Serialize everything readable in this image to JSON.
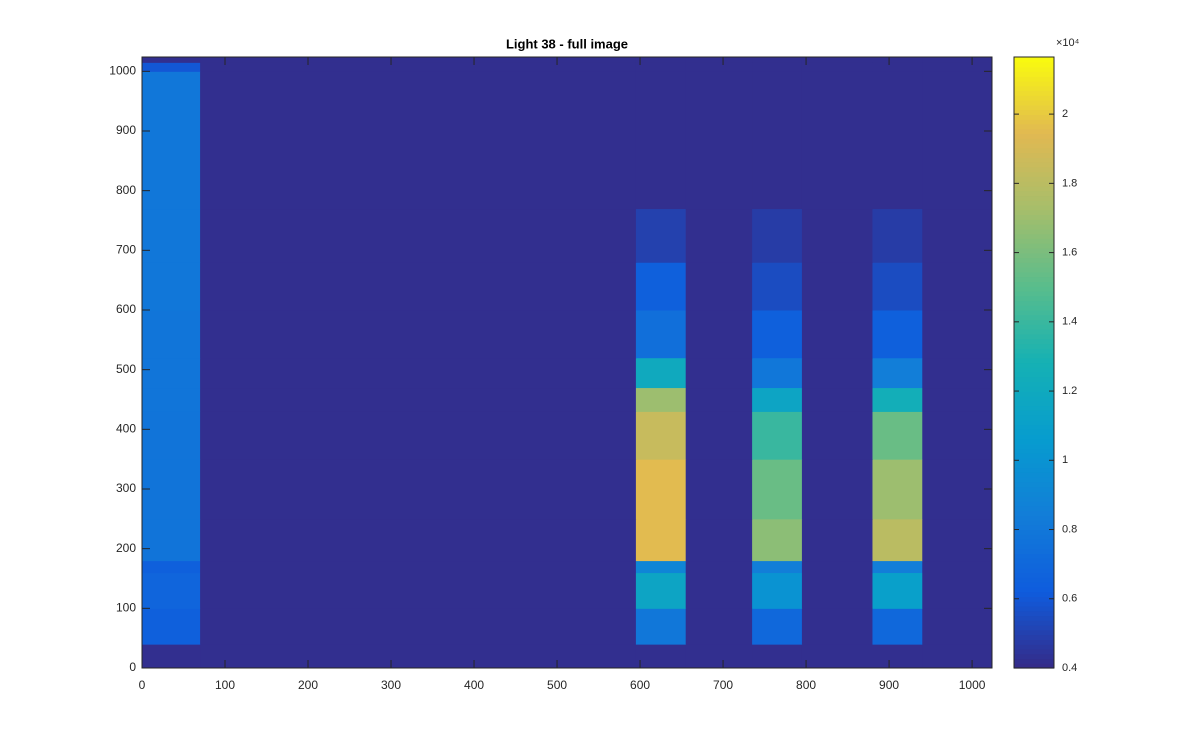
{
  "chart_data": {
    "type": "heatmap",
    "title": "Light 38 - full image",
    "colormap": "parula",
    "xlim": [
      0,
      1024
    ],
    "ylim": [
      0,
      1024
    ],
    "xticks": [
      0,
      100,
      200,
      300,
      400,
      500,
      600,
      700,
      800,
      900,
      1000
    ],
    "yticks": [
      0,
      100,
      200,
      300,
      400,
      500,
      600,
      700,
      800,
      900,
      1000
    ],
    "xedges": [
      0,
      70,
      595,
      655,
      735,
      795,
      880,
      940,
      1024
    ],
    "yedges": [
      0,
      40,
      100,
      160,
      180,
      250,
      350,
      430,
      470,
      520,
      600,
      680,
      770,
      1000,
      1015,
      1024
    ],
    "z": [
      [
        4200,
        4200,
        4200,
        4200,
        4200,
        4200,
        4200,
        4200
      ],
      [
        6500,
        4200,
        8000,
        4200,
        7000,
        4200,
        7000,
        4200
      ],
      [
        6800,
        4200,
        11500,
        4200,
        10000,
        4200,
        11000,
        4200
      ],
      [
        6500,
        4200,
        9000,
        4200,
        8500,
        4200,
        8500,
        4200
      ],
      [
        7800,
        4200,
        19500,
        4200,
        16500,
        4200,
        18000,
        4200
      ],
      [
        7800,
        4200,
        19500,
        4200,
        15500,
        4200,
        17000,
        4200
      ],
      [
        7800,
        4200,
        18500,
        4200,
        14000,
        4200,
        15500,
        4200
      ],
      [
        7900,
        4200,
        17000,
        4200,
        11500,
        4200,
        12500,
        4200
      ],
      [
        7900,
        4200,
        12000,
        4200,
        8000,
        4200,
        8500,
        4200
      ],
      [
        7900,
        4200,
        7500,
        4200,
        6500,
        4200,
        6500,
        4200
      ],
      [
        8000,
        4200,
        6500,
        4200,
        5500,
        4200,
        5500,
        4200
      ],
      [
        8000,
        4200,
        5000,
        4200,
        4800,
        4200,
        4800,
        4200
      ],
      [
        8000,
        4200,
        4200,
        4200,
        4200,
        4200,
        4200,
        4200
      ],
      [
        6000,
        4200,
        4200,
        4200,
        4200,
        4200,
        4200,
        4200
      ],
      [
        4200,
        4200,
        4200,
        4200,
        4200,
        4200,
        4200,
        4200
      ]
    ],
    "clim": [
      4000,
      21650
    ],
    "colorbar_exponent": "×10⁴",
    "colorbar_ticks": [
      {
        "value": 4000,
        "label": "0.4"
      },
      {
        "value": 6000,
        "label": "0.6"
      },
      {
        "value": 8000,
        "label": "0.8"
      },
      {
        "value": 10000,
        "label": "1"
      },
      {
        "value": 12000,
        "label": "1.2"
      },
      {
        "value": 14000,
        "label": "1.4"
      },
      {
        "value": 16000,
        "label": "1.6"
      },
      {
        "value": 18000,
        "label": "1.8"
      },
      {
        "value": 20000,
        "label": "2"
      }
    ]
  }
}
